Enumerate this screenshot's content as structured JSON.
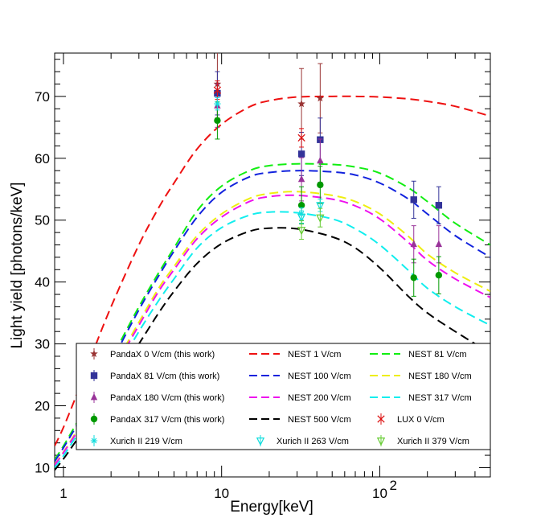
{
  "chart_data": {
    "type": "scatter",
    "title": "",
    "xlabel": "Energy[keV]",
    "ylabel": "Light yield [photons/keV]",
    "xscale": "log",
    "xlim": [
      0.88,
      500
    ],
    "ylim": [
      8.5,
      77
    ],
    "grid": false,
    "legend_position": "bottom",
    "x_tick_labels": [
      {
        "value": 1,
        "label": "1"
      },
      {
        "value": 10,
        "label": "10"
      },
      {
        "value": 100,
        "label": "10",
        "exponent": "2"
      }
    ],
    "y_tick_labels": [
      10,
      20,
      30,
      40,
      50,
      60,
      70
    ],
    "curves": [
      {
        "name": "NEST 1 V/cm",
        "color": "#ee1111",
        "x": [
          0.88,
          1,
          1.2,
          1.5,
          2,
          3,
          4,
          5,
          7,
          10,
          15,
          20,
          30,
          50,
          70,
          100,
          150,
          200,
          300,
          500
        ],
        "y": [
          13.5,
          16.5,
          21.5,
          28,
          36,
          46,
          52,
          56,
          61.5,
          65.5,
          68.3,
          69.3,
          69.9,
          70,
          70,
          69.9,
          69.6,
          69.2,
          68.4,
          66.8
        ]
      },
      {
        "name": "NEST 81 V/cm",
        "color": "#11ee11",
        "x": [
          0.88,
          1,
          1.2,
          1.5,
          2,
          3,
          4,
          5,
          7,
          10,
          15,
          20,
          30,
          50,
          70,
          100,
          150,
          200,
          300,
          500
        ],
        "y": [
          11.3,
          13.5,
          17,
          21.5,
          27.5,
          36,
          41.5,
          45.5,
          51.5,
          55.5,
          58,
          58.8,
          59.1,
          59,
          58.6,
          57.6,
          55.3,
          53,
          49.5,
          46
        ]
      },
      {
        "name": "NEST 100 V/cm",
        "color": "#1122dd",
        "x": [
          0.88,
          1,
          1.2,
          1.5,
          2,
          3,
          4,
          5,
          7,
          10,
          15,
          20,
          30,
          50,
          70,
          100,
          150,
          200,
          300,
          500
        ],
        "y": [
          11,
          13.2,
          16.6,
          21,
          27,
          35.5,
          41,
          45,
          50.5,
          54.5,
          57,
          57.7,
          58,
          57.8,
          57.3,
          56,
          53.5,
          51,
          47.5,
          44
        ]
      },
      {
        "name": "NEST 180 V/cm",
        "color": "#eeee11",
        "x": [
          0.88,
          1,
          1.2,
          1.5,
          2,
          3,
          4,
          5,
          7,
          10,
          15,
          20,
          30,
          50,
          70,
          100,
          150,
          200,
          300,
          500
        ],
        "y": [
          10.5,
          12.5,
          15.7,
          19.8,
          25.5,
          33.5,
          39,
          42.5,
          47.5,
          51,
          53.5,
          54.3,
          54.6,
          54,
          53,
          51,
          47.5,
          44.5,
          41.5,
          38.5
        ]
      },
      {
        "name": "NEST 200 V/cm",
        "color": "#ee11ee",
        "x": [
          0.88,
          1,
          1.2,
          1.5,
          2,
          3,
          4,
          5,
          7,
          10,
          15,
          20,
          30,
          50,
          70,
          100,
          150,
          200,
          300,
          500
        ],
        "y": [
          10.4,
          12.4,
          15.5,
          19.6,
          25.2,
          33,
          38.5,
          42,
          47,
          50.5,
          53,
          53.8,
          54,
          53.4,
          52.3,
          50.2,
          46.5,
          43.5,
          40.5,
          37.5
        ]
      },
      {
        "name": "NEST 317 V/cm",
        "color": "#11eeee",
        "x": [
          0.88,
          1,
          1.2,
          1.5,
          2,
          3,
          4,
          5,
          7,
          10,
          15,
          20,
          30,
          50,
          70,
          100,
          150,
          200,
          300,
          500
        ],
        "y": [
          10,
          11.9,
          15,
          19,
          24.3,
          32,
          37,
          40.5,
          45.5,
          48.8,
          50.8,
          51.3,
          51.2,
          50.2,
          48.6,
          46,
          42,
          39,
          36,
          33
        ]
      },
      {
        "name": "NEST 500 V/cm",
        "color": "#000000",
        "x": [
          0.88,
          1,
          1.2,
          1.5,
          2,
          3,
          4,
          5,
          7,
          10,
          15,
          20,
          30,
          50,
          70,
          100,
          150,
          200,
          300,
          500
        ],
        "y": [
          9.6,
          11.4,
          14.3,
          18,
          23,
          30,
          35,
          38.5,
          43,
          46.2,
          48.2,
          48.7,
          48.6,
          47.3,
          45.5,
          42.3,
          37.8,
          35,
          32,
          28.5
        ]
      }
    ],
    "series": [
      {
        "name": "PandaX 0 V/cm (this work)",
        "marker": "star",
        "color": "#993333",
        "points": [
          {
            "x": 9.4,
            "y": 72.0,
            "err": 5.5
          },
          {
            "x": 32,
            "y": 68.8,
            "err": 5.7
          },
          {
            "x": 42,
            "y": 69.7,
            "err": 5.6
          }
        ]
      },
      {
        "name": "PandaX 81 V/cm (this work)",
        "marker": "square",
        "color": "#333399",
        "points": [
          {
            "x": 9.4,
            "y": 70.5,
            "err": 3.5
          },
          {
            "x": 32,
            "y": 60.7,
            "err": 3.5
          },
          {
            "x": 42,
            "y": 63.0,
            "err": 3.5
          },
          {
            "x": 164,
            "y": 53.3,
            "err": 3.0
          },
          {
            "x": 236,
            "y": 52.4,
            "err": 3.0
          }
        ]
      },
      {
        "name": "PandaX 180 V/cm (this work)",
        "marker": "triangle-up",
        "color": "#993399",
        "points": [
          {
            "x": 9.4,
            "y": 68.5,
            "err": 3.5
          },
          {
            "x": 32,
            "y": 56.6,
            "err": 3.5
          },
          {
            "x": 42,
            "y": 59.6,
            "err": 3.5
          },
          {
            "x": 164,
            "y": 46.1,
            "err": 3.0
          },
          {
            "x": 236,
            "y": 46.1,
            "err": 3.0
          }
        ]
      },
      {
        "name": "PandaX 317 V/cm (this work)",
        "marker": "circle",
        "color": "#009900",
        "points": [
          {
            "x": 9.4,
            "y": 66.1,
            "err": 3.0
          },
          {
            "x": 32,
            "y": 52.4,
            "err": 3.0
          },
          {
            "x": 42,
            "y": 55.7,
            "err": 3.0
          },
          {
            "x": 164,
            "y": 40.7,
            "err": 3.0
          },
          {
            "x": 236,
            "y": 41.1,
            "err": 3.0
          }
        ]
      },
      {
        "name": "LUX 0 V/cm",
        "marker": "x",
        "color": "#dd1111",
        "points": [
          {
            "x": 9.4,
            "y": 71.0,
            "err": 1.5
          },
          {
            "x": 32,
            "y": 63.3,
            "err": 1.5
          }
        ]
      },
      {
        "name": "Xurich II 219 V/cm",
        "marker": "cross",
        "color": "#11dddd",
        "points": [
          {
            "x": 9.4,
            "y": 68.8,
            "err": 1.0
          },
          {
            "x": 32,
            "y": 51.0,
            "err": 1.0
          }
        ]
      },
      {
        "name": "Xurich II 263 V/cm",
        "marker": "triangle-down-open",
        "color": "#11dddd",
        "points": [
          {
            "x": 32,
            "y": 50.5,
            "err": 1.0
          },
          {
            "x": 42,
            "y": 52.4,
            "err": 1.0
          }
        ]
      },
      {
        "name": "Xurich II 379 V/cm",
        "marker": "triangle-down-open",
        "color": "#66cc33",
        "points": [
          {
            "x": 32,
            "y": 48.4,
            "err": 1.5
          },
          {
            "x": 42,
            "y": 50.4,
            "err": 1.5
          }
        ]
      }
    ],
    "legend": [
      [
        "PandaX 0 V/cm (this work)",
        "NEST 1 V/cm",
        "NEST 81 V/cm"
      ],
      [
        "PandaX 81 V/cm (this work)",
        "NEST 100 V/cm",
        "NEST 180 V/cm"
      ],
      [
        "PandaX 180 V/cm (this work)",
        "NEST 200 V/cm",
        "NEST 317 V/cm"
      ],
      [
        "PandaX 317 V/cm (this work)",
        "NEST 500 V/cm",
        "LUX 0 V/cm"
      ],
      [
        "Xurich II 219 V/cm",
        "Xurich II 263 V/cm",
        "Xurich II 379 V/cm"
      ]
    ]
  }
}
